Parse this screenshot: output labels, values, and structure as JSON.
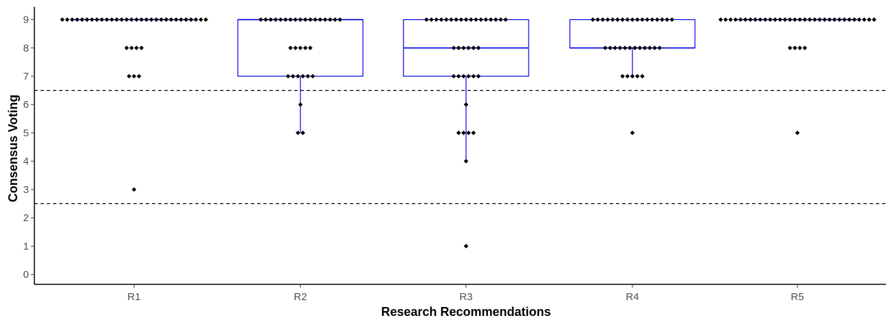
{
  "chart_data": {
    "type": "box+dotplot",
    "xlabel": "Research Recommendations",
    "ylabel": "Consensus Voting",
    "categories": [
      "R1",
      "R2",
      "R3",
      "R4",
      "R5"
    ],
    "yticks": [
      "0",
      "1",
      "2",
      "3",
      "4",
      "5",
      "6",
      "7",
      "8",
      "9"
    ],
    "ylim": [
      -0.35,
      9.45
    ],
    "grid": false,
    "reference_lines": [
      6.5,
      2.5
    ],
    "colors": {
      "box": "#0000ee",
      "points": "#000000",
      "reference": "#000000",
      "axis": "#000000"
    },
    "boxes": [
      {
        "category": "R1",
        "q1": 9,
        "median": 9,
        "q3": 9,
        "whisker_low": 9,
        "whisker_high": 9
      },
      {
        "category": "R2",
        "q1": 7,
        "median": 9,
        "q3": 9,
        "whisker_low": 5,
        "whisker_high": 9
      },
      {
        "category": "R3",
        "q1": 7,
        "median": 8,
        "q3": 9,
        "whisker_low": 4,
        "whisker_high": 9
      },
      {
        "category": "R4",
        "q1": 8,
        "median": 8,
        "q3": 9,
        "whisker_low": 7,
        "whisker_high": 9
      },
      {
        "category": "R5",
        "q1": 9,
        "median": 9,
        "q3": 9,
        "whisker_low": 9,
        "whisker_high": 9
      }
    ],
    "points": [
      {
        "category": "R1",
        "counts": [
          {
            "value": 9,
            "n": 30
          },
          {
            "value": 8,
            "n": 4
          },
          {
            "value": 7,
            "n": 3
          },
          {
            "value": 3,
            "n": 1
          }
        ]
      },
      {
        "category": "R2",
        "counts": [
          {
            "value": 9,
            "n": 17
          },
          {
            "value": 8,
            "n": 5
          },
          {
            "value": 7,
            "n": 6
          },
          {
            "value": 6,
            "n": 1
          },
          {
            "value": 5,
            "n": 2
          }
        ]
      },
      {
        "category": "R3",
        "counts": [
          {
            "value": 9,
            "n": 17
          },
          {
            "value": 8,
            "n": 6
          },
          {
            "value": 7,
            "n": 6
          },
          {
            "value": 6,
            "n": 1
          },
          {
            "value": 5,
            "n": 4
          },
          {
            "value": 4,
            "n": 1
          },
          {
            "value": 1,
            "n": 1
          }
        ]
      },
      {
        "category": "R4",
        "counts": [
          {
            "value": 9,
            "n": 17
          },
          {
            "value": 8,
            "n": 12
          },
          {
            "value": 7,
            "n": 5
          },
          {
            "value": 5,
            "n": 1
          }
        ]
      },
      {
        "category": "R5",
        "counts": [
          {
            "value": 9,
            "n": 32
          },
          {
            "value": 8,
            "n": 4
          },
          {
            "value": 5,
            "n": 1
          }
        ]
      }
    ]
  }
}
